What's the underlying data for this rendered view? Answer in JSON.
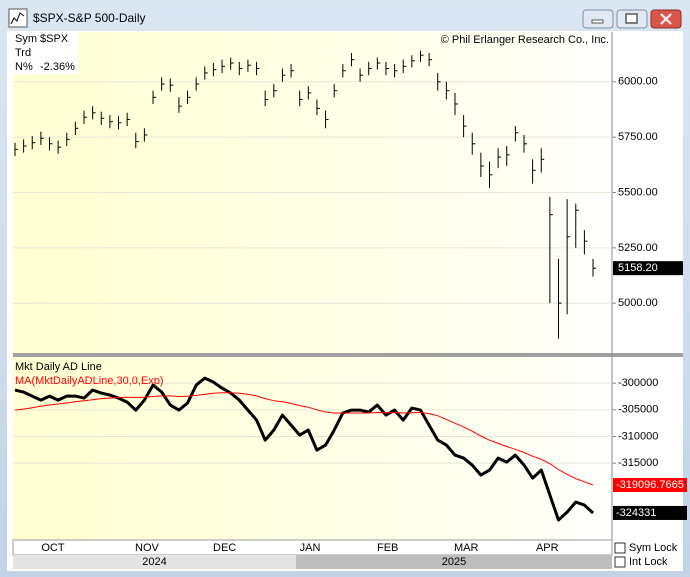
{
  "window": {
    "title": "$SPX-S&P 500-Daily"
  },
  "info": {
    "rows": [
      [
        "Sym",
        "$SPX"
      ],
      [
        "Trd"
      ],
      [
        "N%",
        "-2.36%"
      ]
    ]
  },
  "chart_data": [
    {
      "type": "ohlc",
      "copyright": "© Phil Erlanger Research Co., Inc.",
      "color": "#000000",
      "high": [
        5725,
        5740,
        5755,
        5775,
        5750,
        5735,
        5770,
        5820,
        5870,
        5890,
        5865,
        5850,
        5845,
        5860,
        5770,
        5790,
        5960,
        6020,
        6015,
        5930,
        5960,
        6020,
        6070,
        6085,
        6100,
        6110,
        6090,
        6100,
        6090,
        5960,
        5990,
        6060,
        6080,
        5960,
        5980,
        5920,
        5870,
        5990,
        6080,
        6130,
        6060,
        6090,
        6110,
        6090,
        6080,
        6100,
        6120,
        6140,
        6130,
        6040,
        6000,
        5950,
        5850,
        5770,
        5680,
        5640,
        5700,
        5710,
        5800,
        5760,
        5650,
        5700,
        5480,
        5200,
        5470,
        5450,
        5330,
        5200
      ],
      "low": [
        5665,
        5680,
        5695,
        5715,
        5690,
        5675,
        5710,
        5760,
        5810,
        5830,
        5805,
        5790,
        5785,
        5800,
        5700,
        5730,
        5900,
        5960,
        5955,
        5860,
        5900,
        5960,
        6010,
        6025,
        6040,
        6055,
        6030,
        6045,
        6030,
        5890,
        5930,
        6000,
        6020,
        5890,
        5920,
        5850,
        5790,
        5930,
        6020,
        6070,
        6000,
        6030,
        6055,
        6030,
        6020,
        6040,
        6065,
        6090,
        6070,
        5960,
        5920,
        5850,
        5750,
        5670,
        5570,
        5520,
        5610,
        5620,
        5730,
        5680,
        5540,
        5590,
        5000,
        4840,
        4950,
        5250,
        5220,
        5120
      ],
      "close": [
        5695,
        5710,
        5725,
        5745,
        5720,
        5705,
        5740,
        5790,
        5840,
        5860,
        5835,
        5820,
        5815,
        5830,
        5730,
        5760,
        5930,
        5990,
        5985,
        5890,
        5930,
        5990,
        6040,
        6055,
        6070,
        6085,
        6060,
        6075,
        6060,
        5920,
        5960,
        6030,
        6050,
        5920,
        5950,
        5880,
        5830,
        5960,
        6050,
        6100,
        6030,
        6060,
        6085,
        6060,
        6050,
        6070,
        6095,
        6120,
        6100,
        6000,
        5960,
        5900,
        5800,
        5720,
        5620,
        5580,
        5660,
        5670,
        5770,
        5720,
        5600,
        5650,
        5400,
        5000,
        5300,
        5420,
        5280,
        5158.2
      ],
      "last_label": "5158.20",
      "ylim": [
        4775,
        6225
      ],
      "yticks": [
        {
          "value": 5000,
          "label": "5000.00"
        },
        {
          "value": 5250,
          "label": "5250.00"
        },
        {
          "value": 5500,
          "label": "5500.00"
        },
        {
          "value": 5750,
          "label": "5750.00"
        },
        {
          "value": 6000,
          "label": "6000.00"
        }
      ],
      "grid": true
    },
    {
      "type": "line",
      "series": [
        {
          "name": "Mkt Daily AD Line",
          "color": "#000000",
          "values": [
            -301311,
            -301686,
            -302435,
            -303184,
            -302435,
            -303184,
            -302435,
            -302435,
            -302810,
            -301311,
            -301873,
            -302248,
            -302810,
            -303559,
            -305057,
            -303184,
            -300375,
            -301686,
            -304121,
            -305057,
            -303746,
            -300375,
            -299064,
            -299813,
            -300937,
            -301873,
            -303184,
            -305057,
            -306930,
            -310676,
            -308803,
            -305994,
            -307867,
            -309740,
            -308803,
            -312549,
            -311613,
            -308803,
            -305619,
            -305057,
            -305057,
            -305432,
            -304121,
            -305994,
            -305057,
            -306930,
            -304683,
            -305057,
            -307867,
            -310676,
            -311613,
            -313486,
            -314048,
            -315359,
            -317232,
            -316295,
            -314048,
            -314797,
            -313486,
            -315359,
            -317794,
            -316295,
            -320978,
            -325660,
            -324162,
            -322289,
            -322851,
            -324331
          ]
        },
        {
          "name": "MA(MktDailyADLine,30,0,Exp)",
          "color": "#ff0000",
          "values": [
            -305057,
            -304870,
            -304600,
            -304300,
            -304100,
            -303900,
            -303700,
            -303500,
            -303300,
            -303100,
            -302900,
            -302800,
            -302700,
            -302650,
            -302700,
            -302650,
            -302500,
            -302400,
            -302400,
            -302500,
            -302450,
            -302300,
            -302100,
            -301900,
            -301800,
            -301800,
            -301900,
            -302100,
            -302400,
            -302900,
            -303300,
            -303500,
            -303800,
            -304200,
            -304500,
            -305000,
            -305400,
            -305600,
            -305600,
            -305600,
            -305600,
            -305600,
            -305500,
            -305550,
            -305500,
            -305600,
            -305550,
            -305500,
            -305700,
            -306100,
            -306800,
            -307500,
            -308200,
            -309000,
            -309900,
            -310700,
            -311300,
            -311900,
            -312400,
            -313000,
            -313700,
            -314300,
            -315100,
            -316200,
            -317100,
            -317900,
            -318500,
            -319096.7665
          ]
        }
      ],
      "ylim": [
        -329400,
        -295100
      ],
      "yticks": [
        -315000,
        -310000,
        -305000,
        -300000
      ],
      "grid": true
    }
  ],
  "x_axis": {
    "xlim": [
      -0.23,
      69.2
    ],
    "xticks": [
      {
        "value": 4.4,
        "label": "OCT"
      },
      {
        "value": 15.3,
        "label": "NOV"
      },
      {
        "value": 24.3,
        "label": "DEC"
      },
      {
        "value": 34.2,
        "label": "JAN"
      },
      {
        "value": 43.2,
        "label": "FEB"
      },
      {
        "value": 52.3,
        "label": "MAR"
      },
      {
        "value": 61.7,
        "label": "APR"
      }
    ],
    "years": [
      "2024",
      "2025"
    ]
  },
  "controls": [
    "Sym Lock",
    "Int Lock"
  ]
}
